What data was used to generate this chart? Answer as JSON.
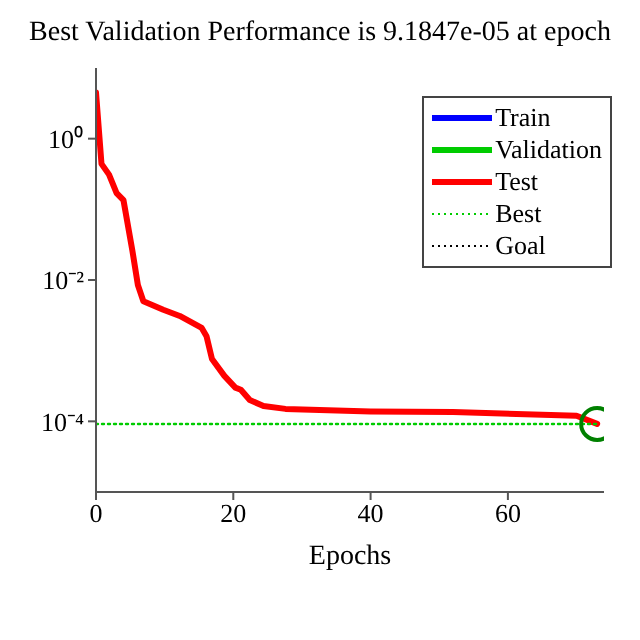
{
  "chart_data": {
    "type": "line",
    "title": "Best Validation Performance is 9.1847e-05 at epoch",
    "xlabel": "Epochs",
    "xlim": [
      0,
      74
    ],
    "xticks": [
      0,
      20,
      40,
      60
    ],
    "ylim": [
      1e-05,
      10
    ],
    "yticks": [
      {
        "value": 0.0001,
        "label": "10⁻⁴"
      },
      {
        "value": 0.01,
        "label": "10⁻²"
      },
      {
        "value": 1,
        "label": "10⁰"
      }
    ],
    "log": "y",
    "legend": "top right",
    "marker": "none",
    "series": [
      {
        "name": "Train",
        "color": "#0000ff"
      },
      {
        "name": "Validation",
        "color": "#00cc00"
      },
      {
        "name": "Test",
        "color": "#ff0000",
        "x": [
          0,
          0.8,
          1.9,
          3,
          4,
          5.3,
          6.1,
          6.9,
          9.8,
          12.2,
          15.4,
          16.1,
          16.9,
          18.7,
          20.3,
          21.1,
          22.4,
          24.4,
          27.6,
          40,
          52,
          70,
          73
        ],
        "values": [
          4.5,
          0.44,
          0.31,
          0.17,
          0.135,
          0.026,
          0.0085,
          0.005,
          0.0038,
          0.0031,
          0.0021,
          0.0016,
          0.00076,
          0.00044,
          0.0003,
          0.00028,
          0.0002,
          0.000165,
          0.00015,
          0.000138,
          0.000135,
          0.00012,
          9.2e-05
        ]
      },
      {
        "name": "Best",
        "color": "#00cc00",
        "line_style": "dotted",
        "x": [
          0,
          73
        ],
        "values": [
          9.1847e-05,
          9.1847e-05
        ]
      },
      {
        "name": "Goal",
        "color": "#000000",
        "line_style": "dotted"
      },
      {
        "type": "scatter",
        "marker": "circle",
        "color": "#008000",
        "x": [
          73
        ],
        "values": [
          9.1847e-05
        ]
      }
    ]
  }
}
